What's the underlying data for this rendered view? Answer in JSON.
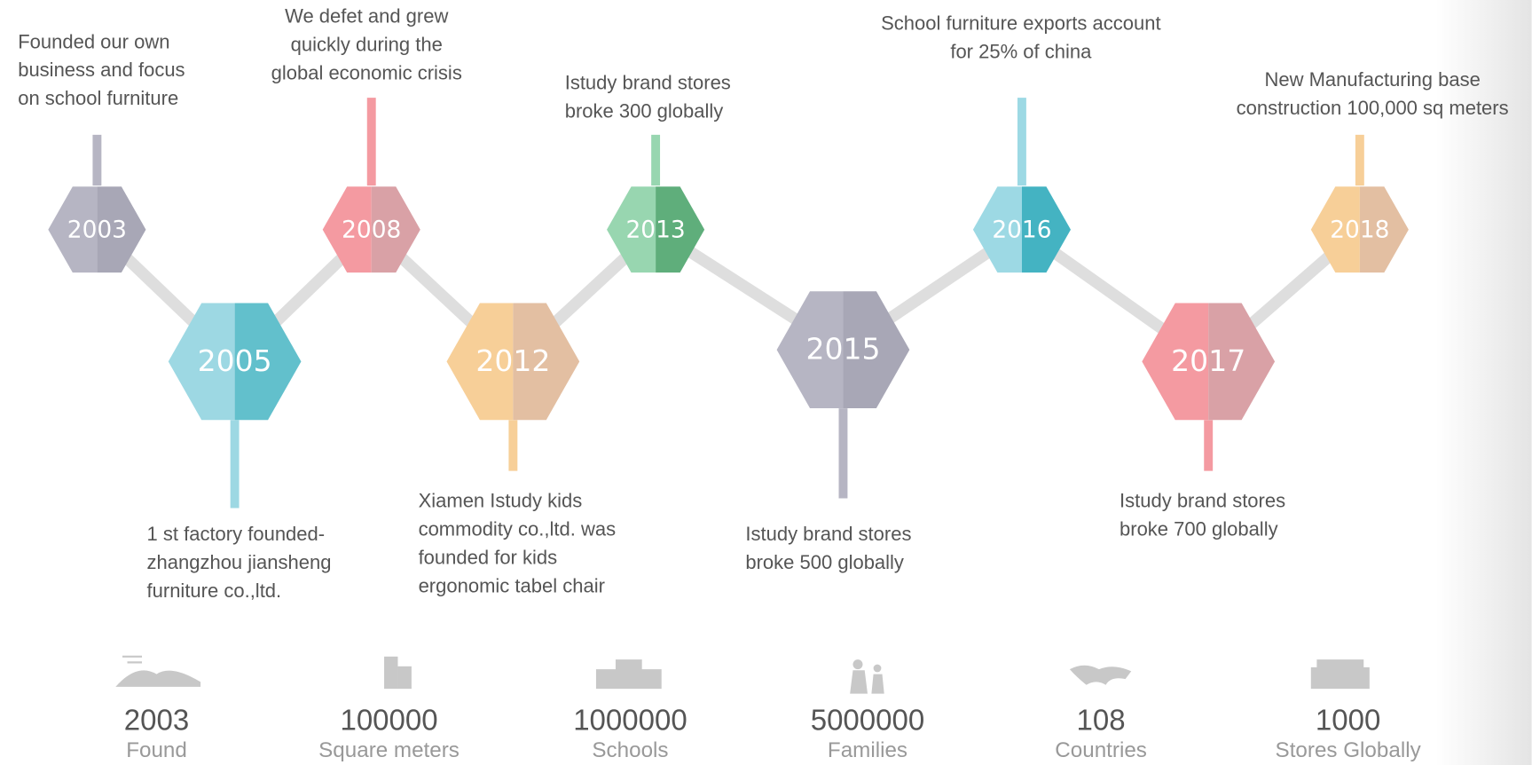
{
  "timeline": [
    {
      "year": "2003",
      "lines": [
        "Founded our own",
        "business and focus",
        "on school furniture"
      ]
    },
    {
      "year": "2005",
      "lines": [
        "1 st factory founded-",
        "zhangzhou jiansheng",
        "furniture co.,ltd."
      ]
    },
    {
      "year": "2008",
      "lines": [
        "We defet and grew",
        "quickly during the",
        "global economic crisis"
      ]
    },
    {
      "year": "2012",
      "lines": [
        "Xiamen Istudy kids",
        "commodity co.,ltd. was",
        "founded for kids",
        "ergonomic tabel chair"
      ]
    },
    {
      "year": "2013",
      "lines": [
        "Istudy brand stores",
        "broke 300 globally"
      ]
    },
    {
      "year": "2015",
      "lines": [
        "Istudy brand stores",
        "broke 500 globally"
      ]
    },
    {
      "year": "2016",
      "lines": [
        "School furniture exports account",
        "for 25% of china"
      ]
    },
    {
      "year": "2017",
      "lines": [
        "Istudy brand stores",
        "broke 700 globally"
      ]
    },
    {
      "year": "2018",
      "lines": [
        "New Manufacturing base",
        "construction 100,000 sq meters"
      ]
    }
  ],
  "stats": [
    {
      "value": "2003",
      "label": "Found"
    },
    {
      "value": "100000",
      "label": "Square meters"
    },
    {
      "value": "1000000",
      "label": "Schools"
    },
    {
      "value": "5000000",
      "label": "Families"
    },
    {
      "value": "108",
      "label": "Countries"
    },
    {
      "value": "1000",
      "label": "Stores Globally"
    }
  ]
}
